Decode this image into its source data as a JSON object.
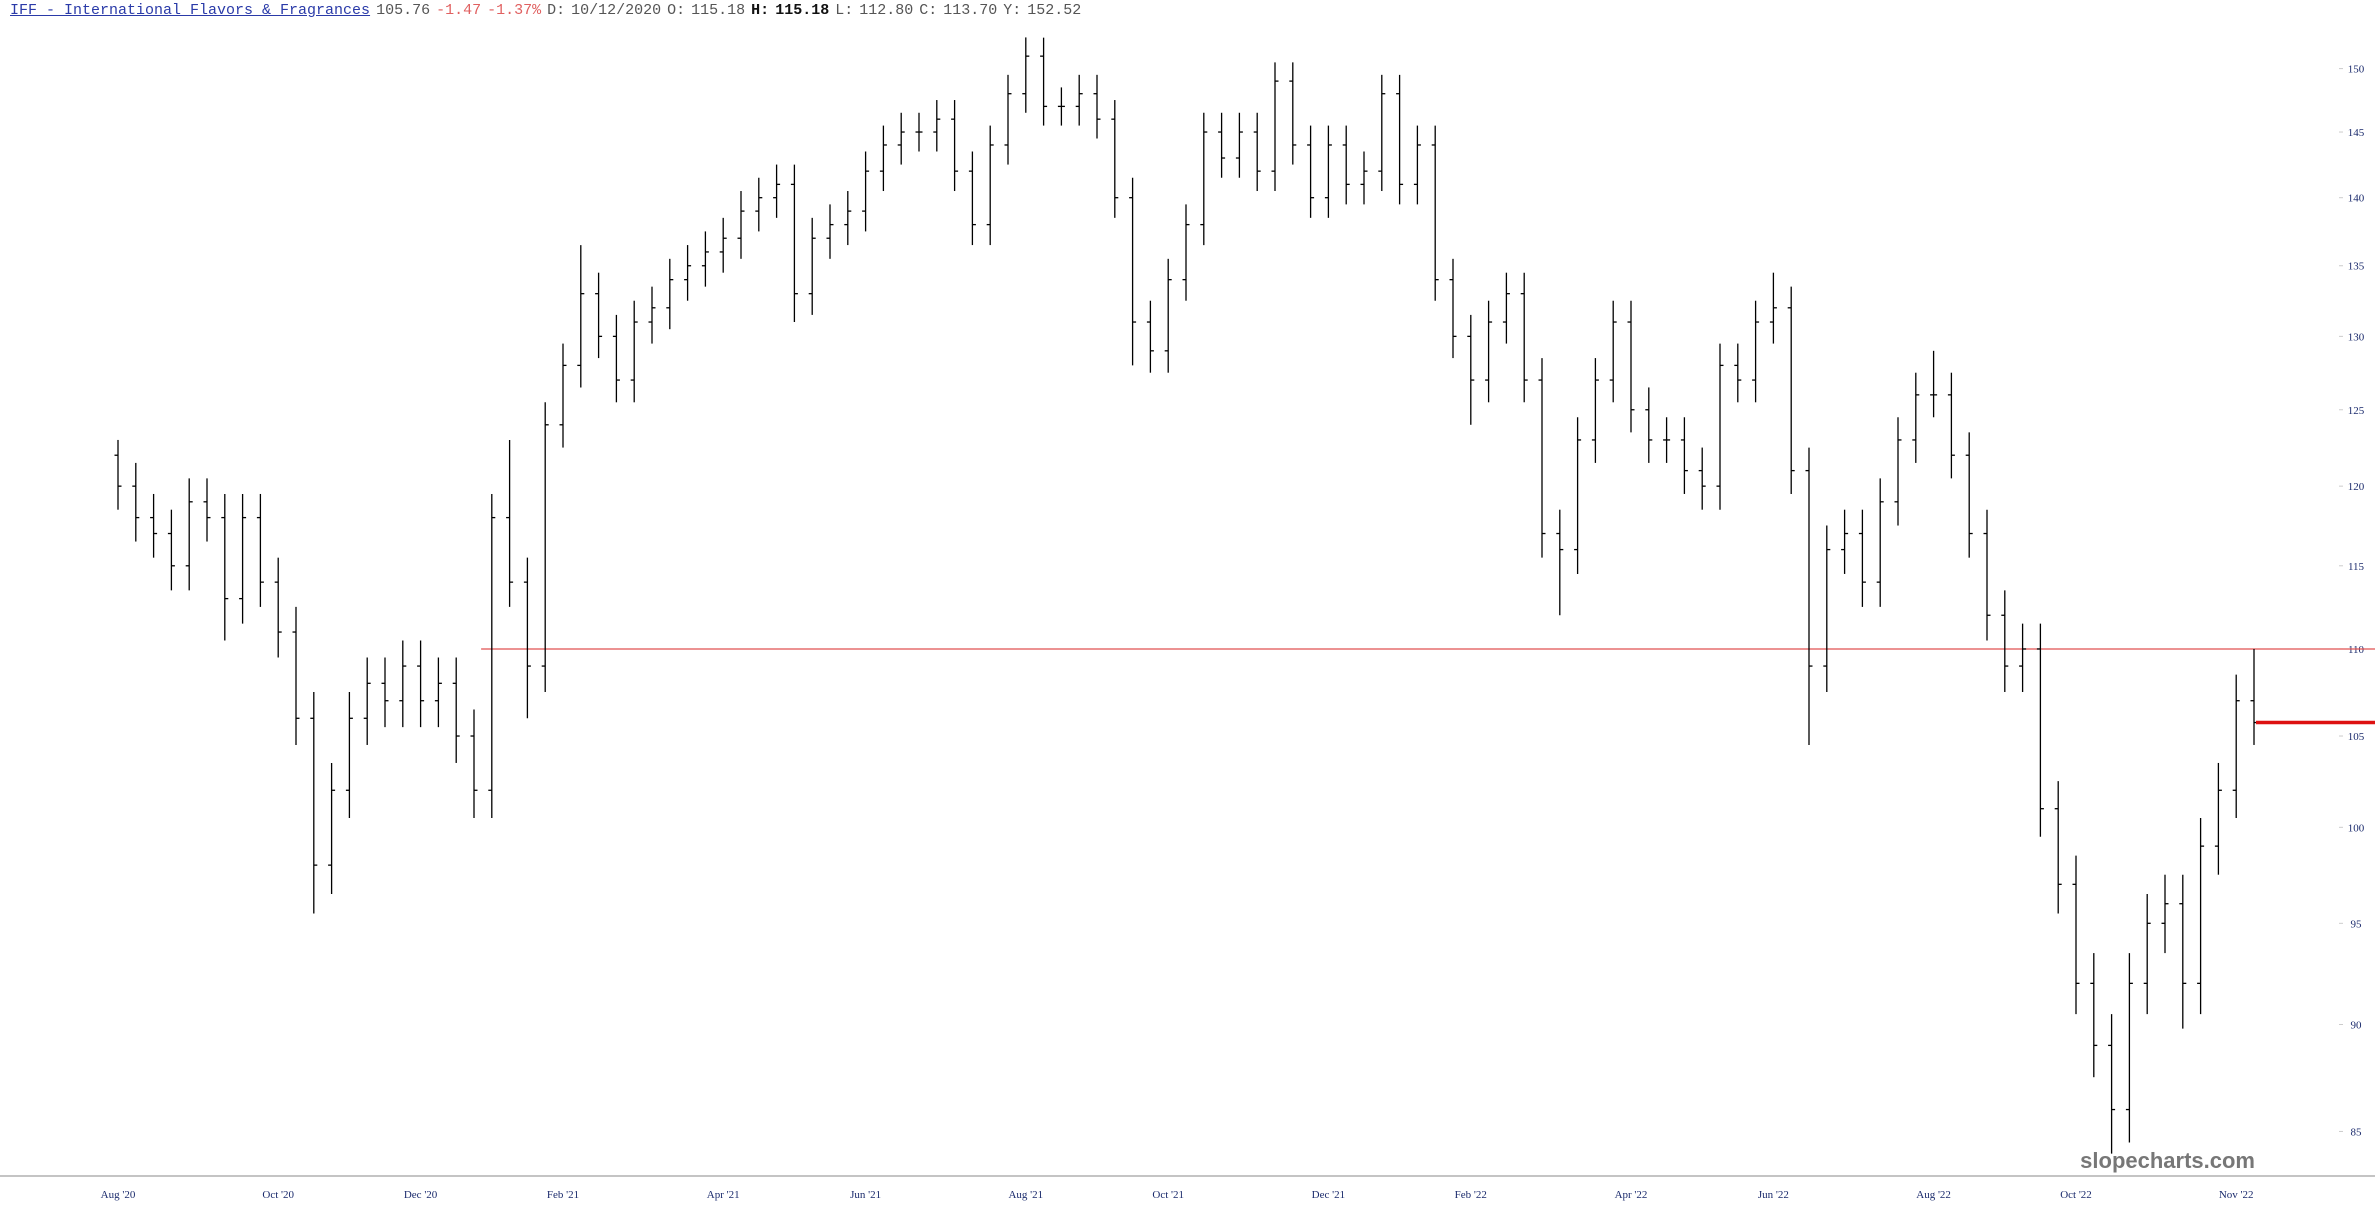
{
  "header": {
    "symbol_name": "IFF - International Flavors & Fragrances",
    "price": "105.76",
    "change": "-1.47",
    "change_pct": "-1.37%",
    "d_label": "D:",
    "date": "10/12/2020",
    "o_label": "O:",
    "open": "115.18",
    "h_label": "H:",
    "high": "115.18",
    "l_label": "L:",
    "low": "112.80",
    "c_label": "C:",
    "close": "113.70",
    "y_label": "Y:",
    "year_high": "152.52"
  },
  "chart_data": {
    "type": "ohlc",
    "color": "#000000",
    "log_scale": true,
    "categories": [
      "Aug '20",
      null,
      null,
      null,
      null,
      null,
      null,
      null,
      null,
      "Oct '20",
      null,
      null,
      null,
      null,
      null,
      null,
      null,
      "Dec '20",
      null,
      null,
      null,
      null,
      null,
      null,
      null,
      "Feb '21",
      null,
      null,
      null,
      null,
      null,
      null,
      null,
      null,
      "Apr '21",
      null,
      null,
      null,
      null,
      null,
      null,
      null,
      "Jun '21",
      null,
      null,
      null,
      null,
      null,
      null,
      null,
      null,
      "Aug '21",
      null,
      null,
      null,
      null,
      null,
      null,
      null,
      "Oct '21",
      null,
      null,
      null,
      null,
      null,
      null,
      null,
      null,
      "Dec '21",
      null,
      null,
      null,
      null,
      null,
      null,
      null,
      "Feb '22",
      null,
      null,
      null,
      null,
      null,
      null,
      null,
      null,
      "Apr '22",
      null,
      null,
      null,
      null,
      null,
      null,
      null,
      "Jun '22",
      null,
      null,
      null,
      null,
      null,
      null,
      null,
      null,
      "Aug '22",
      null,
      null,
      null,
      null,
      null,
      null,
      null,
      "Oct '22",
      null,
      null,
      null,
      null,
      null,
      null,
      null,
      null,
      "Nov '22",
      null
    ],
    "open": [
      122,
      120,
      118,
      117,
      115,
      119,
      118,
      113,
      118,
      114,
      111,
      106,
      98,
      102,
      106,
      108,
      107,
      109,
      107,
      108,
      105,
      102,
      118,
      114,
      109,
      124,
      128,
      133,
      130,
      127,
      131,
      132,
      134,
      135,
      136,
      137,
      139,
      140,
      141,
      133,
      137,
      138,
      139,
      142,
      144,
      145,
      145,
      146,
      142,
      138,
      144,
      148,
      151,
      147,
      147,
      148,
      146,
      140,
      131,
      129,
      134,
      138,
      145,
      143,
      145,
      142,
      149,
      144,
      140,
      144,
      141,
      142,
      148,
      141,
      144,
      134,
      130,
      127,
      131,
      133,
      127,
      117,
      116,
      123,
      127,
      131,
      125,
      123,
      123,
      121,
      120,
      128,
      127,
      131,
      132,
      121,
      109,
      116,
      117,
      114,
      119,
      123,
      126,
      126,
      122,
      117,
      112,
      109,
      110,
      101,
      97,
      92,
      89,
      86,
      92,
      95,
      96,
      92,
      99,
      102,
      107
    ],
    "high": [
      123,
      121.5,
      119.5,
      118.5,
      120.5,
      120.5,
      119.5,
      119.5,
      119.5,
      115.5,
      112.5,
      107.5,
      103.5,
      107.5,
      109.5,
      109.5,
      110.5,
      110.5,
      109.5,
      109.5,
      106.5,
      119.5,
      123,
      115.5,
      125.5,
      129.5,
      136.5,
      134.5,
      131.5,
      132.5,
      133.5,
      135.5,
      136.5,
      137.5,
      138.5,
      140.5,
      141.5,
      142.5,
      142.5,
      138.5,
      139.5,
      140.5,
      143.5,
      145.5,
      146.5,
      146.5,
      147.5,
      147.5,
      143.5,
      145.5,
      149.5,
      152.52,
      152.5,
      148.5,
      149.5,
      149.5,
      147.5,
      141.5,
      132.5,
      135.5,
      139.5,
      146.5,
      146.5,
      146.5,
      146.5,
      150.5,
      150.5,
      145.5,
      145.5,
      145.5,
      143.5,
      149.5,
      149.5,
      145.5,
      145.5,
      135.5,
      131.5,
      132.5,
      134.5,
      134.5,
      128.5,
      118.5,
      124.5,
      128.5,
      132.5,
      132.5,
      126.5,
      124.5,
      124.5,
      122.5,
      129.5,
      129.5,
      132.5,
      134.5,
      133.5,
      122.5,
      117.5,
      118.5,
      118.5,
      120.5,
      124.5,
      127.5,
      129,
      127.5,
      123.5,
      118.5,
      113.5,
      111.5,
      111.5,
      102.5,
      98.5,
      93.5,
      90.5,
      93.5,
      96.5,
      97.5,
      97.5,
      100.5,
      103.5,
      108.5,
      110
    ],
    "low": [
      118.5,
      116.5,
      115.5,
      113.5,
      113.5,
      116.5,
      110.5,
      111.5,
      112.5,
      109.5,
      104.5,
      95.5,
      96.5,
      100.5,
      104.5,
      105.5,
      105.5,
      105.5,
      105.5,
      103.5,
      100.5,
      100.5,
      112.5,
      106,
      107.5,
      122.5,
      126.5,
      128.5,
      125.5,
      125.5,
      129.5,
      130.5,
      132.5,
      133.5,
      134.5,
      135.5,
      137.5,
      138.5,
      131,
      131.5,
      135.5,
      136.5,
      137.5,
      140.5,
      142.5,
      143.5,
      143.5,
      140.5,
      136.5,
      136.5,
      142.5,
      146.5,
      145.5,
      145.5,
      145.5,
      144.5,
      138.5,
      128,
      127.5,
      127.5,
      132.5,
      136.5,
      141.5,
      141.5,
      140.5,
      140.5,
      142.5,
      138.5,
      138.5,
      139.5,
      139.5,
      140.5,
      139.5,
      139.5,
      132.5,
      128.5,
      124,
      125.5,
      129.5,
      125.5,
      115.5,
      112,
      114.5,
      121.5,
      125.5,
      123.5,
      121.5,
      121.5,
      119.5,
      118.5,
      118.5,
      125.5,
      125.5,
      129.5,
      119.5,
      104.5,
      107.5,
      114.5,
      112.5,
      112.5,
      117.5,
      121.5,
      124.5,
      120.5,
      115.5,
      110.5,
      107.5,
      107.5,
      99.5,
      95.5,
      90.5,
      87.5,
      84,
      84.5,
      90.5,
      93.5,
      89.8,
      90.5,
      97.5,
      100.5,
      104.5
    ],
    "close": [
      120,
      118,
      117,
      115,
      119,
      118,
      113,
      118,
      114,
      111,
      106,
      98,
      102,
      106,
      108,
      107,
      109,
      107,
      108,
      105,
      102,
      118,
      114,
      109,
      124,
      128,
      133,
      130,
      127,
      131,
      132,
      134,
      135,
      136,
      137,
      139,
      140,
      141,
      133,
      137,
      138,
      139,
      142,
      144,
      145,
      145,
      146,
      142,
      138,
      144,
      148,
      151,
      147,
      147,
      148,
      146,
      140,
      131,
      129,
      134,
      138,
      145,
      143,
      145,
      142,
      149,
      144,
      140,
      144,
      141,
      142,
      148,
      141,
      144,
      134,
      130,
      127,
      131,
      133,
      127,
      117,
      116,
      123,
      127,
      131,
      125,
      123,
      123,
      121,
      120,
      128,
      127,
      131,
      132,
      121,
      109,
      116,
      117,
      114,
      119,
      123,
      126,
      126,
      122,
      117,
      112,
      109,
      110,
      101,
      97,
      92,
      89,
      86,
      92,
      95,
      96,
      92,
      99,
      102,
      107,
      105.76
    ],
    "ylim": [
      83,
      155.6
    ],
    "yticks": [
      85,
      90,
      95,
      100,
      105,
      110,
      115,
      120,
      125,
      130,
      135,
      140,
      145,
      150
    ],
    "reference_line": {
      "value": 110,
      "color": "#e05050"
    },
    "last_price_color": "#dd1111",
    "watermark": "slopecharts.com"
  }
}
